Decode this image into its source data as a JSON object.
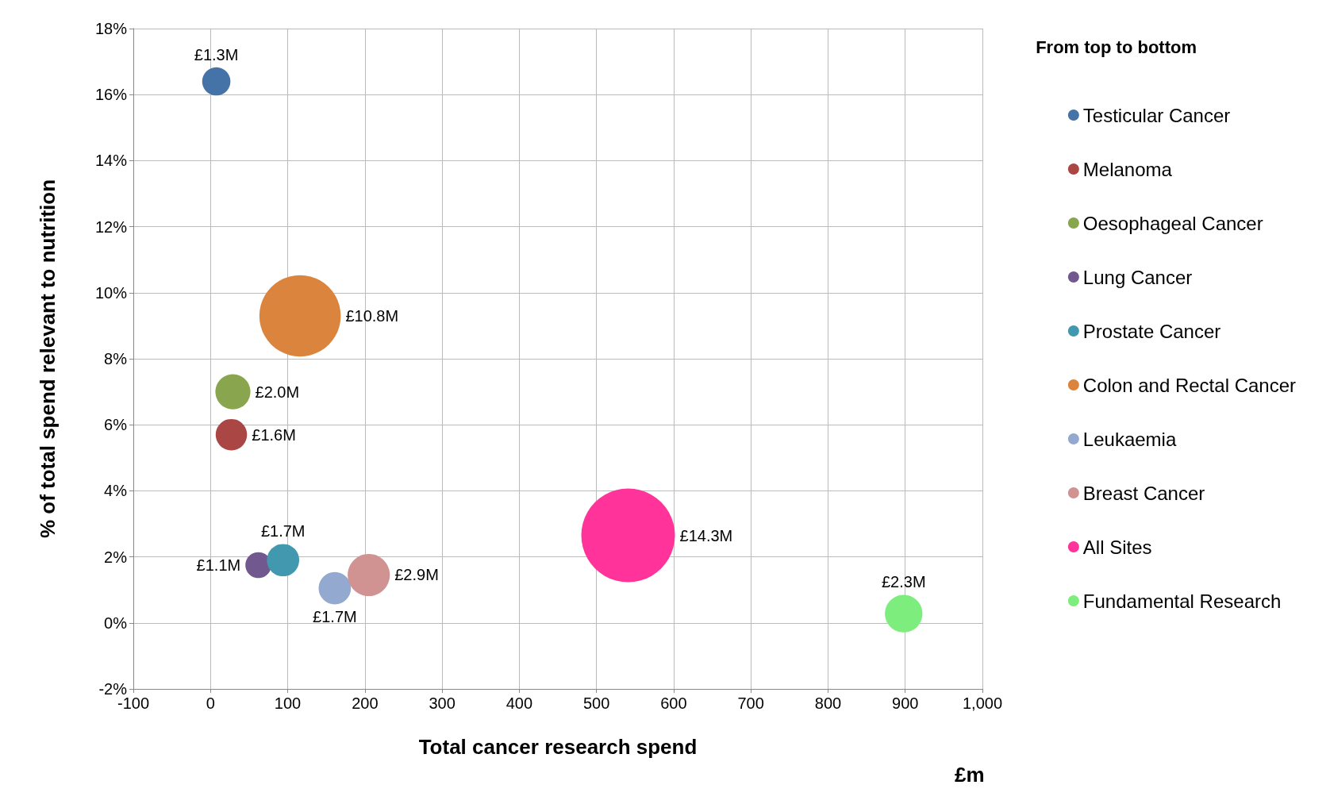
{
  "chart_data": {
    "type": "bubble",
    "xlabel": "Total cancer research spend",
    "ylabel": "% of total spend relevant to nutrition",
    "legend_title": "From top to bottom",
    "annotations": [
      "£m"
    ],
    "xlim": [
      -100,
      1000
    ],
    "xticks": [
      -100,
      0,
      100,
      200,
      300,
      400,
      500,
      600,
      700,
      800,
      900,
      {
        "value": 1000,
        "label": "1,000"
      }
    ],
    "ylim": [
      -2,
      18
    ],
    "yticks": [
      {
        "value": -2,
        "label": "-2%"
      },
      {
        "value": 0,
        "label": "0%"
      },
      {
        "value": 2,
        "label": "2%"
      },
      {
        "value": 4,
        "label": "4%"
      },
      {
        "value": 6,
        "label": "6%"
      },
      {
        "value": 8,
        "label": "8%"
      },
      {
        "value": 10,
        "label": "10%"
      },
      {
        "value": 12,
        "label": "12%"
      },
      {
        "value": 14,
        "label": "14%"
      },
      {
        "value": 16,
        "label": "16%"
      },
      {
        "value": 18,
        "label": "18%"
      }
    ],
    "grid": true,
    "legend": "right",
    "marker": "circle",
    "series": [
      {
        "name": "Testicular Cancer",
        "color": "#4572a7",
        "x": [
          7.5
        ],
        "values": [
          16.4
        ],
        "sizes": [
          1.3
        ],
        "value_labels": [
          "£1.3M"
        ]
      },
      {
        "name": "Melanoma",
        "color": "#aa4643",
        "x": [
          27
        ],
        "values": [
          5.7
        ],
        "sizes": [
          1.6
        ],
        "value_labels": [
          "£1.6M"
        ]
      },
      {
        "name": "Oesophageal Cancer",
        "color": "#89a54e",
        "x": [
          29
        ],
        "values": [
          7.0
        ],
        "sizes": [
          2.0
        ],
        "value_labels": [
          "£2.0M"
        ]
      },
      {
        "name": "Lung Cancer",
        "color": "#71588f",
        "x": [
          62
        ],
        "values": [
          1.75
        ],
        "sizes": [
          1.1
        ],
        "value_labels": [
          "£1.1M"
        ]
      },
      {
        "name": "Prostate Cancer",
        "color": "#4198af",
        "x": [
          94
        ],
        "values": [
          1.9
        ],
        "sizes": [
          1.7
        ],
        "value_labels": [
          "£1.7M"
        ]
      },
      {
        "name": "Colon and Rectal Cancer",
        "color": "#db843d",
        "x": [
          116
        ],
        "values": [
          9.3
        ],
        "sizes": [
          10.8
        ],
        "value_labels": [
          "£10.8M"
        ]
      },
      {
        "name": "Leukaemia",
        "color": "#93a9cf",
        "x": [
          161
        ],
        "values": [
          1.05
        ],
        "sizes": [
          1.7
        ],
        "value_labels": [
          "£1.7M"
        ]
      },
      {
        "name": "Breast Cancer",
        "color": "#d19392",
        "x": [
          205
        ],
        "values": [
          1.45
        ],
        "sizes": [
          2.9
        ],
        "value_labels": [
          "£2.9M"
        ]
      },
      {
        "name": "All Sites",
        "color": "#ff3399",
        "x": [
          541
        ],
        "values": [
          2.65
        ],
        "sizes": [
          14.3
        ],
        "value_labels": [
          "£14.3M"
        ]
      },
      {
        "name": "Fundamental Research",
        "color": "#7ded7d",
        "x": [
          898
        ],
        "values": [
          0.28
        ],
        "sizes": [
          2.3
        ],
        "value_labels": [
          "£2.3M"
        ]
      }
    ]
  }
}
